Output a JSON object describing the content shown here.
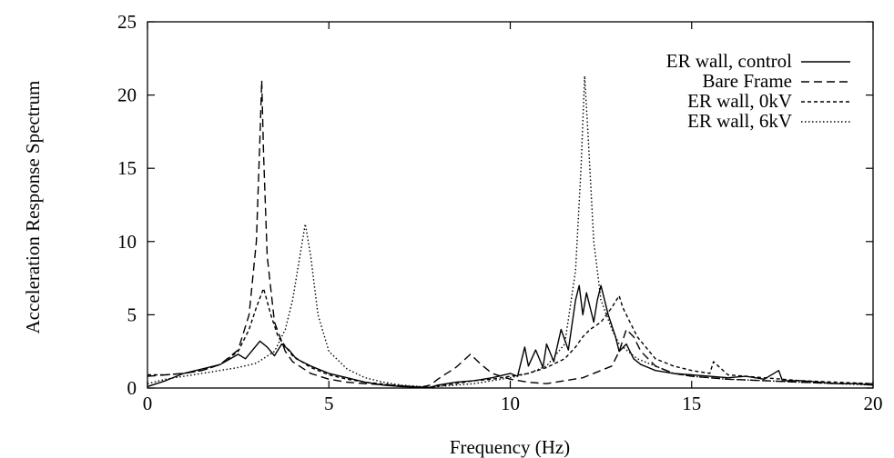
{
  "chart_data": {
    "type": "line",
    "title": "",
    "xlabel": "Frequency (Hz)",
    "ylabel": "Acceleration Response Spectrum",
    "xlim": [
      0,
      20
    ],
    "ylim": [
      0,
      25
    ],
    "xticks": [
      0,
      5,
      10,
      15,
      20
    ],
    "yticks": [
      0,
      5,
      10,
      15,
      20,
      25
    ],
    "grid": false,
    "legend_position": "top-right",
    "series": [
      {
        "name": "ER wall, control",
        "dash": "solid",
        "x": [
          0,
          0.5,
          1.0,
          1.5,
          2.0,
          2.5,
          2.7,
          2.9,
          3.1,
          3.3,
          3.5,
          3.7,
          3.9,
          4.1,
          4.5,
          5.0,
          5.5,
          6.0,
          6.5,
          7.0,
          7.5,
          7.8,
          8.0,
          8.5,
          9.0,
          9.5,
          10.0,
          10.2,
          10.4,
          10.5,
          10.7,
          10.9,
          11.0,
          11.2,
          11.4,
          11.6,
          11.8,
          11.9,
          12.0,
          12.1,
          12.3,
          12.4,
          12.5,
          12.7,
          12.9,
          13.0,
          13.2,
          13.4,
          13.6,
          13.8,
          14.0,
          14.5,
          15.0,
          15.5,
          16.0,
          16.5,
          17.0,
          17.4,
          17.5,
          18.0,
          18.5,
          19.0,
          19.5,
          20.0
        ],
        "y": [
          0.1,
          0.5,
          1.0,
          1.3,
          1.6,
          2.3,
          2.0,
          2.6,
          3.2,
          2.8,
          2.2,
          3.0,
          2.6,
          2.0,
          1.5,
          1.0,
          0.7,
          0.4,
          0.2,
          0.1,
          0.05,
          0.05,
          0.2,
          0.4,
          0.5,
          0.7,
          1.0,
          0.8,
          2.8,
          1.5,
          2.6,
          1.4,
          3.0,
          1.8,
          4.0,
          2.6,
          6.0,
          7.0,
          5.0,
          6.5,
          4.5,
          6.0,
          7.0,
          5.0,
          3.5,
          2.5,
          3.0,
          2.0,
          1.6,
          1.4,
          1.2,
          1.0,
          0.9,
          0.8,
          0.7,
          0.8,
          0.6,
          1.2,
          0.5,
          0.5,
          0.4,
          0.3,
          0.3,
          0.2
        ]
      },
      {
        "name": "Bare Frame",
        "dash": "long-dash",
        "x": [
          0,
          0.5,
          1.0,
          1.5,
          2.0,
          2.5,
          2.8,
          3.0,
          3.1,
          3.15,
          3.2,
          3.3,
          3.5,
          3.8,
          4.0,
          4.5,
          5.0,
          5.5,
          6.0,
          7.0,
          7.5,
          7.8,
          8.0,
          8.5,
          8.9,
          9.2,
          9.5,
          10.0,
          10.5,
          11.0,
          11.5,
          12.0,
          12.5,
          12.8,
          13.0,
          13.2,
          13.4,
          13.6,
          14.0,
          14.5,
          15.0,
          16.0,
          17.0,
          18.0,
          19.0,
          20.0
        ],
        "y": [
          0.8,
          0.9,
          1.0,
          1.2,
          1.6,
          2.6,
          5.0,
          10.0,
          17.0,
          21.0,
          16.0,
          9.0,
          4.5,
          2.5,
          1.8,
          1.0,
          0.6,
          0.4,
          0.3,
          0.15,
          0.05,
          0.2,
          0.6,
          1.4,
          2.3,
          1.6,
          1.0,
          0.6,
          0.4,
          0.3,
          0.5,
          0.7,
          1.2,
          1.5,
          2.5,
          4.0,
          3.5,
          2.5,
          1.5,
          1.0,
          0.8,
          0.6,
          0.5,
          0.4,
          0.3,
          0.3
        ]
      },
      {
        "name": "ER wall, 0kV",
        "dash": "short-dash",
        "x": [
          0,
          0.5,
          1.0,
          1.5,
          2.0,
          2.5,
          2.8,
          3.0,
          3.2,
          3.4,
          3.6,
          4.0,
          4.5,
          5.0,
          5.5,
          6.0,
          7.0,
          7.8,
          8.5,
          9.0,
          9.5,
          10.0,
          10.5,
          11.0,
          11.5,
          11.8,
          12.0,
          12.2,
          12.5,
          12.8,
          13.0,
          13.1,
          13.3,
          13.5,
          14.0,
          14.5,
          15.0,
          15.5,
          15.6,
          16.0,
          17.0,
          18.0,
          19.0,
          20.0
        ],
        "y": [
          0.9,
          0.9,
          1.0,
          1.2,
          1.6,
          2.5,
          4.0,
          5.5,
          6.8,
          5.0,
          3.5,
          2.2,
          1.4,
          0.9,
          0.6,
          0.4,
          0.15,
          0.05,
          0.3,
          0.5,
          0.6,
          0.8,
          1.0,
          1.4,
          2.0,
          2.8,
          3.5,
          4.0,
          4.5,
          5.5,
          6.3,
          5.5,
          4.5,
          3.5,
          2.0,
          1.5,
          1.2,
          1.0,
          1.8,
          0.9,
          0.7,
          0.5,
          0.4,
          0.3
        ]
      },
      {
        "name": "ER wall, 6kV",
        "dash": "dotted",
        "x": [
          0,
          0.5,
          1.0,
          1.5,
          2.0,
          2.5,
          3.0,
          3.5,
          3.8,
          4.0,
          4.2,
          4.35,
          4.5,
          4.7,
          5.0,
          5.5,
          6.0,
          6.5,
          7.0,
          7.5,
          7.8,
          8.0,
          8.5,
          9.0,
          9.5,
          10.0,
          10.5,
          11.0,
          11.5,
          11.8,
          11.95,
          12.05,
          12.15,
          12.3,
          12.5,
          12.8,
          13.0,
          13.5,
          14.0,
          14.5,
          15.0,
          16.0,
          17.0,
          18.0,
          19.0,
          20.0
        ],
        "y": [
          0.3,
          0.6,
          0.8,
          1.0,
          1.2,
          1.4,
          1.7,
          2.5,
          4.0,
          6.0,
          9.0,
          11.2,
          9.0,
          5.0,
          2.5,
          1.3,
          0.7,
          0.4,
          0.2,
          0.1,
          0.05,
          0.1,
          0.2,
          0.3,
          0.5,
          0.7,
          1.0,
          1.5,
          3.0,
          8.0,
          15.0,
          21.3,
          17.0,
          10.0,
          6.0,
          4.0,
          3.0,
          2.0,
          1.5,
          1.0,
          0.8,
          0.6,
          0.5,
          0.4,
          0.3,
          0.2
        ]
      }
    ]
  }
}
